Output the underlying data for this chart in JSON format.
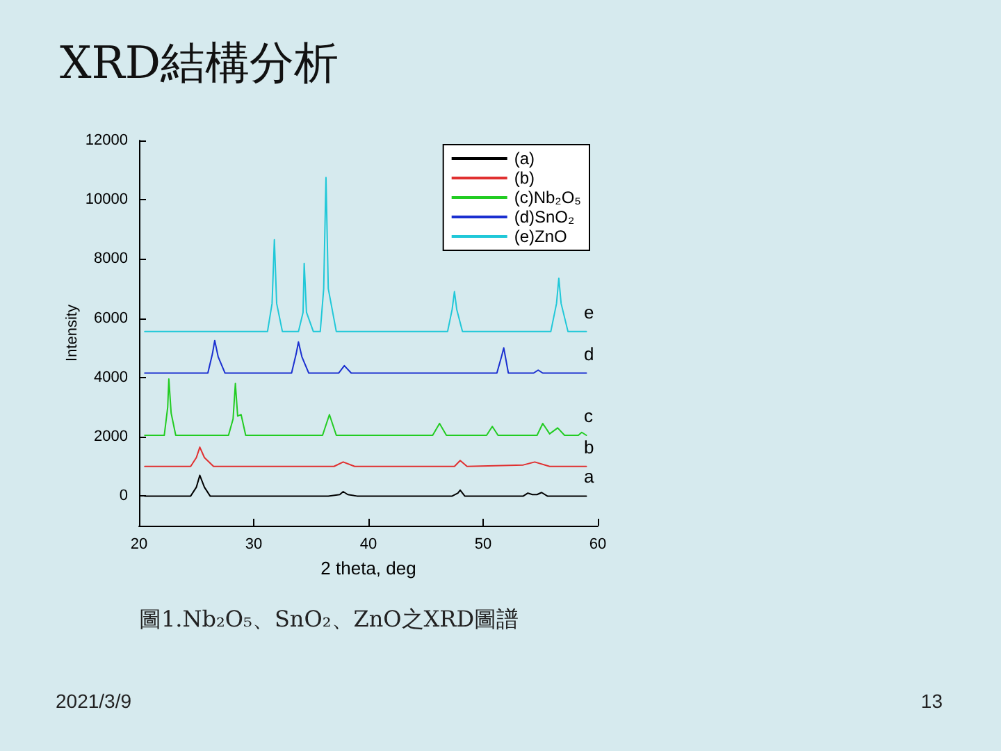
{
  "chart_data": {
    "type": "line",
    "title": "XRD結構分析",
    "xlabel": "2 theta, deg",
    "ylabel": "Intensity",
    "xlim": [
      20,
      60
    ],
    "xticks": [
      20,
      30,
      40,
      50,
      60
    ],
    "ylim": [
      -1000,
      12000
    ],
    "yticks": [
      0,
      2000,
      4000,
      6000,
      8000,
      10000,
      12000
    ],
    "legend": "top right",
    "grid": false,
    "series": [
      {
        "name": "(a)",
        "color": "#000000",
        "x": [
          20.5,
          24.5,
          25.0,
          25.3,
          25.7,
          26.2,
          36.5,
          37.5,
          37.8,
          38.2,
          39,
          47.3,
          47.8,
          48.0,
          48.4,
          51,
          53.5,
          53.9,
          54.3,
          54.7,
          55.1,
          55.6,
          59
        ],
        "values": [
          0,
          0,
          300,
          700,
          300,
          0,
          0,
          50,
          150,
          50,
          0,
          0,
          100,
          200,
          0,
          0,
          0,
          100,
          50,
          50,
          120,
          0,
          0
        ]
      },
      {
        "name": "(b)",
        "color": "#e03030",
        "x": [
          20.5,
          24.5,
          25.0,
          25.3,
          25.7,
          26.5,
          37,
          37.8,
          38.8,
          47.5,
          48,
          48.6,
          53.5,
          54.5,
          55.8,
          59
        ],
        "values": [
          1000,
          1000,
          1300,
          1650,
          1300,
          1000,
          1000,
          1150,
          1000,
          1000,
          1200,
          1000,
          1050,
          1150,
          1000,
          1000
        ]
      },
      {
        "name": "(c)Nb₂O₅",
        "color": "#22cc22",
        "x": [
          20.5,
          22.2,
          22.5,
          22.6,
          22.8,
          23.2,
          27.8,
          28.2,
          28.4,
          28.6,
          28.9,
          29.3,
          36.0,
          36.6,
          37.2,
          45.6,
          46.2,
          46.8,
          50.3,
          50.8,
          51.3,
          54.7,
          55.2,
          55.8,
          56.5,
          57.1,
          58.3,
          58.6,
          59
        ],
        "values": [
          2050,
          2050,
          3000,
          3950,
          2800,
          2050,
          2050,
          2600,
          3800,
          2700,
          2750,
          2050,
          2050,
          2750,
          2050,
          2050,
          2450,
          2050,
          2050,
          2350,
          2050,
          2050,
          2450,
          2100,
          2300,
          2050,
          2050,
          2150,
          2050
        ]
      },
      {
        "name": "(d)SnO₂",
        "color": "#1a2fd0",
        "x": [
          20.5,
          26.0,
          26.4,
          26.6,
          26.9,
          27.5,
          33.3,
          33.7,
          33.9,
          34.2,
          34.8,
          37.4,
          37.9,
          38.5,
          51.2,
          51.6,
          51.8,
          52.2,
          54.4,
          54.8,
          55.2,
          59
        ],
        "values": [
          4150,
          4150,
          4800,
          5250,
          4700,
          4150,
          4150,
          4800,
          5200,
          4700,
          4150,
          4150,
          4400,
          4150,
          4150,
          4700,
          5000,
          4150,
          4150,
          4250,
          4150,
          4150
        ]
      },
      {
        "name": "(e)ZnO",
        "color": "#20c8d8",
        "x": [
          20.5,
          31.2,
          31.6,
          31.8,
          32.0,
          32.5,
          33.9,
          34.3,
          34.4,
          34.6,
          35.2,
          35.8,
          36.1,
          36.3,
          36.5,
          37.2,
          46.9,
          47.3,
          47.5,
          47.7,
          48.2,
          55.9,
          56.4,
          56.6,
          56.8,
          57.4,
          59
        ],
        "values": [
          5550,
          5550,
          6500,
          8650,
          6500,
          5550,
          5550,
          6200,
          7850,
          6200,
          5550,
          5550,
          7000,
          10750,
          7000,
          5550,
          5550,
          6300,
          6900,
          6300,
          5550,
          5550,
          6500,
          7350,
          6500,
          5550,
          5550
        ]
      }
    ],
    "annotations": [
      "e",
      "d",
      "c",
      "b",
      "a",
      "圖1.Nb₂O₅、SnO₂、ZnO之XRD圖譜",
      "2021/3/9",
      "13"
    ]
  }
}
